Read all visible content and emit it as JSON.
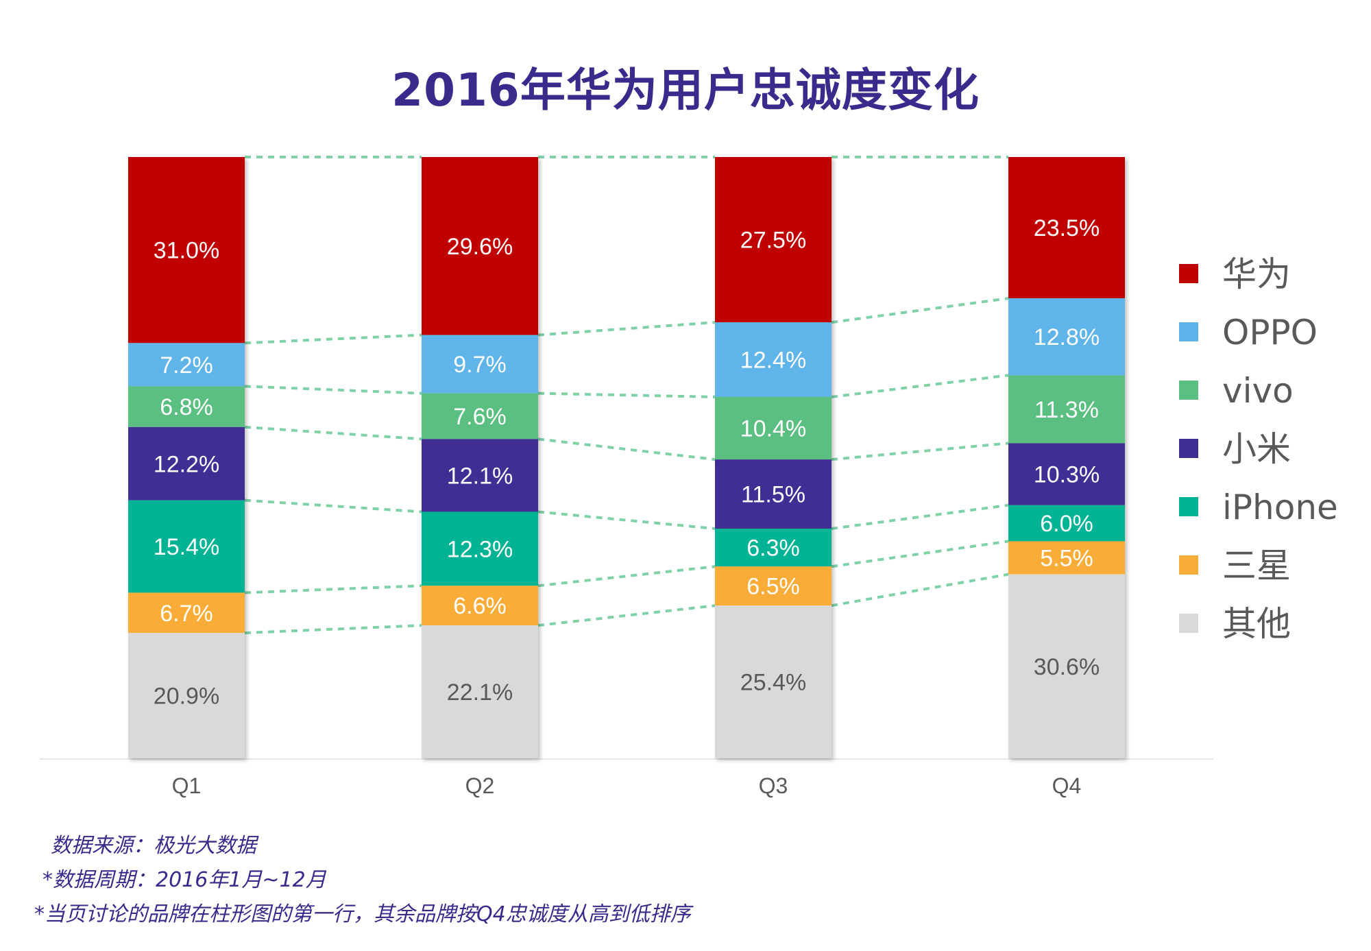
{
  "title": "2016年华为用户忠诚度变化",
  "chart_data": {
    "type": "stacked-bar-100",
    "title": "2016年华为用户忠诚度变化",
    "categories": [
      "Q1",
      "Q2",
      "Q3",
      "Q4"
    ],
    "series": [
      {
        "name": "华为",
        "color": "#c00000",
        "values": [
          31.0,
          29.6,
          27.5,
          23.5
        ]
      },
      {
        "name": "OPPO",
        "color": "#5eb4ea",
        "values": [
          7.2,
          9.7,
          12.4,
          12.8
        ]
      },
      {
        "name": "vivo",
        "color": "#5cbf82",
        "values": [
          6.8,
          7.6,
          10.4,
          11.3
        ]
      },
      {
        "name": "小米",
        "color": "#3f2f94",
        "values": [
          12.2,
          12.1,
          11.5,
          10.3
        ]
      },
      {
        "name": "iPhone",
        "color": "#00b394",
        "values": [
          15.4,
          12.3,
          6.3,
          6.0
        ]
      },
      {
        "name": "三星",
        "color": "#f9ad39",
        "values": [
          6.7,
          6.6,
          6.5,
          5.5
        ]
      },
      {
        "name": "其他",
        "color": "#d9d9d9",
        "values": [
          20.9,
          22.1,
          25.4,
          30.6
        ]
      }
    ],
    "value_suffix": "%",
    "legend_position": "right",
    "ylim": [
      0,
      100
    ],
    "connector_color": "#7fd1a6"
  },
  "footnotes": [
    "数据来源：极光大数据",
    "*数据周期：2016年1月~12月",
    "*当页讨论的品牌在柱形图的第一行，其余品牌按Q4忠诚度从高到低排序"
  ],
  "colors": {
    "title": "#3b2a8c",
    "label_light": "#ffffff",
    "label_dark": "#595959",
    "axis": "#e6e6e6",
    "axis_text": "#595959",
    "legend_text": "#595959"
  }
}
